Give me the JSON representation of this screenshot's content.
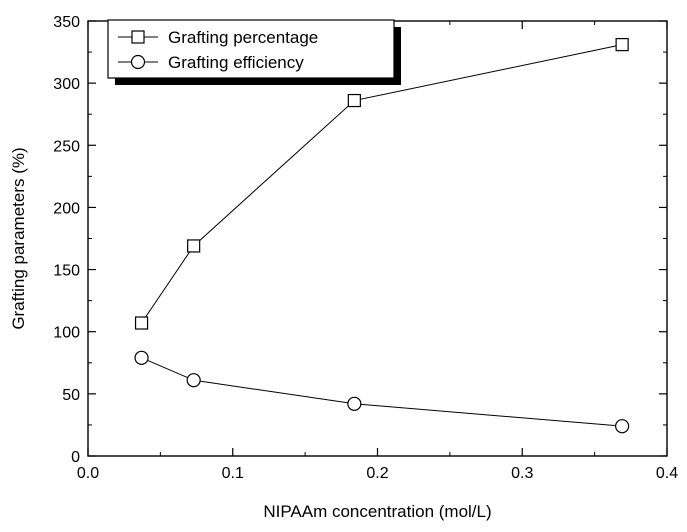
{
  "chart_data": {
    "type": "line",
    "title": "",
    "xlabel": "NIPAAm concentration (mol/L)",
    "ylabel": "Grafting parameters (%)",
    "xlim": [
      0.0,
      0.4
    ],
    "ylim": [
      0,
      350
    ],
    "x_ticks": [
      "0.0",
      "0.1",
      "0.2",
      "0.3",
      "0.4"
    ],
    "y_ticks": [
      "0",
      "50",
      "100",
      "150",
      "200",
      "250",
      "300",
      "350"
    ],
    "grid": false,
    "legend_position": "top-left",
    "series": [
      {
        "name": "Grafting percentage",
        "marker": "square",
        "color": "#000000",
        "x": [
          0.037,
          0.073,
          0.184,
          0.369
        ],
        "y": [
          107,
          169,
          286,
          331
        ]
      },
      {
        "name": "Grafting efficiency",
        "marker": "circle",
        "color": "#000000",
        "x": [
          0.037,
          0.073,
          0.184,
          0.369
        ],
        "y": [
          79,
          61,
          42,
          24
        ]
      }
    ]
  }
}
